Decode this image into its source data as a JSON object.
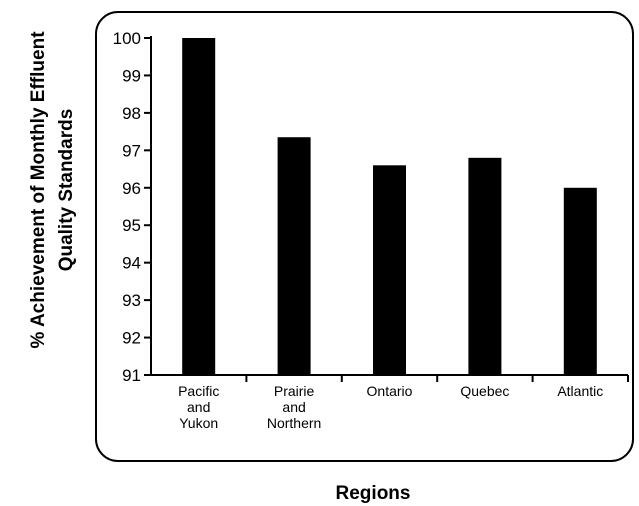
{
  "chart_data": {
    "type": "bar",
    "categories": [
      [
        "Pacific",
        "and",
        "Yukon"
      ],
      [
        "Prairie",
        "and",
        "Northern"
      ],
      [
        "Ontario"
      ],
      [
        "Quebec"
      ],
      [
        "Atlantic"
      ]
    ],
    "values": [
      100,
      97.35,
      96.6,
      96.8,
      96.0
    ],
    "ylabel": [
      "% Achievement of Monthly Effluent",
      "Quality Standards"
    ],
    "xlabel": "Regions",
    "ylim": [
      91,
      100
    ],
    "yticks": [
      "91",
      "92",
      "93",
      "94",
      "95",
      "96",
      "97",
      "98",
      "99",
      "100"
    ],
    "grid": false,
    "legend": "none",
    "bar_color": "#000000"
  }
}
